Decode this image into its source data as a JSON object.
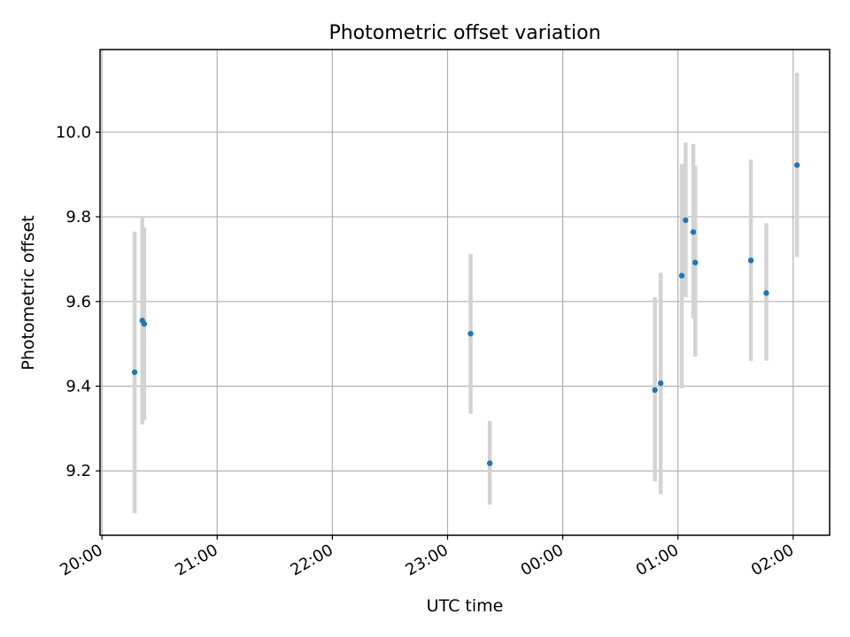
{
  "chart_data": {
    "type": "scatter",
    "title": "Photometric offset variation",
    "xlabel": "UTC time",
    "ylabel": "Photometric offset",
    "xlim": [
      "19:59",
      "02:19"
    ],
    "ylim": [
      9.048,
      10.195
    ],
    "x_ticks": [
      "20:00",
      "21:00",
      "22:00",
      "23:00",
      "00:00",
      "01:00",
      "02:00"
    ],
    "y_ticks": [
      9.2,
      9.4,
      9.6,
      9.8,
      10.0
    ],
    "y_tick_labels": [
      "9.2",
      "9.4",
      "9.6",
      "9.8",
      "10.0"
    ],
    "grid": true,
    "colors": {
      "point": "#1f77b4",
      "errorbar": "#d3d3d3",
      "grid": "#b0b0b0"
    },
    "points": [
      {
        "time": "20:17",
        "y": 9.433,
        "err_low": 9.1,
        "err_high": 9.765
      },
      {
        "time": "20:21",
        "y": 9.555,
        "err_low": 9.31,
        "err_high": 9.8
      },
      {
        "time": "20:22",
        "y": 9.547,
        "err_low": 9.32,
        "err_high": 9.775
      },
      {
        "time": "23:12",
        "y": 9.524,
        "err_low": 9.335,
        "err_high": 9.712
      },
      {
        "time": "23:22",
        "y": 9.218,
        "err_low": 9.12,
        "err_high": 9.318
      },
      {
        "time": "00:48",
        "y": 9.391,
        "err_low": 9.175,
        "err_high": 9.61
      },
      {
        "time": "00:51",
        "y": 9.407,
        "err_low": 9.145,
        "err_high": 9.668
      },
      {
        "time": "01:02",
        "y": 9.661,
        "err_low": 9.395,
        "err_high": 9.925
      },
      {
        "time": "01:04",
        "y": 9.792,
        "err_low": 9.61,
        "err_high": 9.975
      },
      {
        "time": "01:08",
        "y": 9.764,
        "err_low": 9.56,
        "err_high": 9.972
      },
      {
        "time": "01:09",
        "y": 9.692,
        "err_low": 9.47,
        "err_high": 9.92
      },
      {
        "time": "01:38",
        "y": 9.697,
        "err_low": 9.46,
        "err_high": 9.935
      },
      {
        "time": "01:46",
        "y": 9.62,
        "err_low": 9.46,
        "err_high": 9.785
      },
      {
        "time": "02:02",
        "y": 9.922,
        "err_low": 9.705,
        "err_high": 10.14
      }
    ]
  }
}
